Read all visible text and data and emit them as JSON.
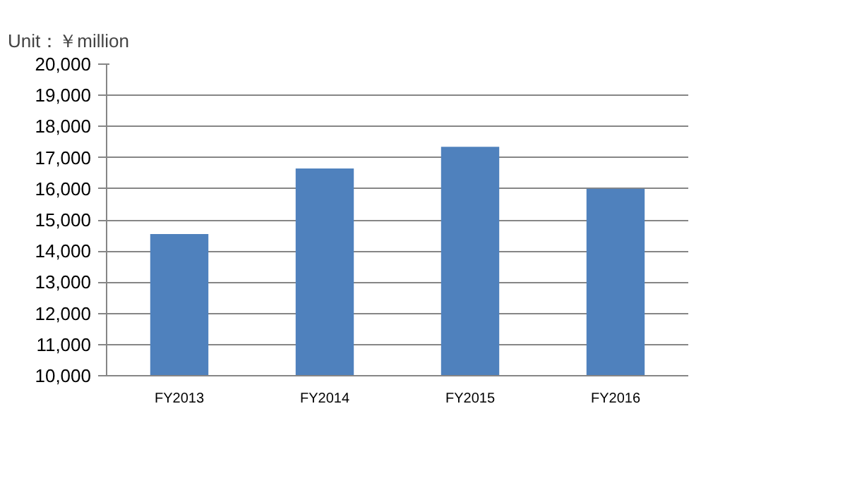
{
  "chart_data": {
    "type": "bar",
    "title": "Unit：￥million",
    "categories": [
      "FY2013",
      "FY2014",
      "FY2015",
      "FY2016"
    ],
    "values": [
      14550,
      16650,
      17350,
      16000
    ],
    "color": "#4f81bd",
    "ylim": [
      10000,
      20000
    ],
    "yticks": [
      {
        "value": 10000,
        "label": "10,000"
      },
      {
        "value": 11000,
        "label": "11,000"
      },
      {
        "value": 12000,
        "label": "12,000"
      },
      {
        "value": 13000,
        "label": "13,000"
      },
      {
        "value": 14000,
        "label": "14,000"
      },
      {
        "value": 15000,
        "label": "15,000"
      },
      {
        "value": 16000,
        "label": "16,000"
      },
      {
        "value": 17000,
        "label": "17,000"
      },
      {
        "value": 18000,
        "label": "18,000"
      },
      {
        "value": 19000,
        "label": "19,000"
      },
      {
        "value": 20000,
        "label": "20,000"
      }
    ],
    "grid": "y"
  }
}
